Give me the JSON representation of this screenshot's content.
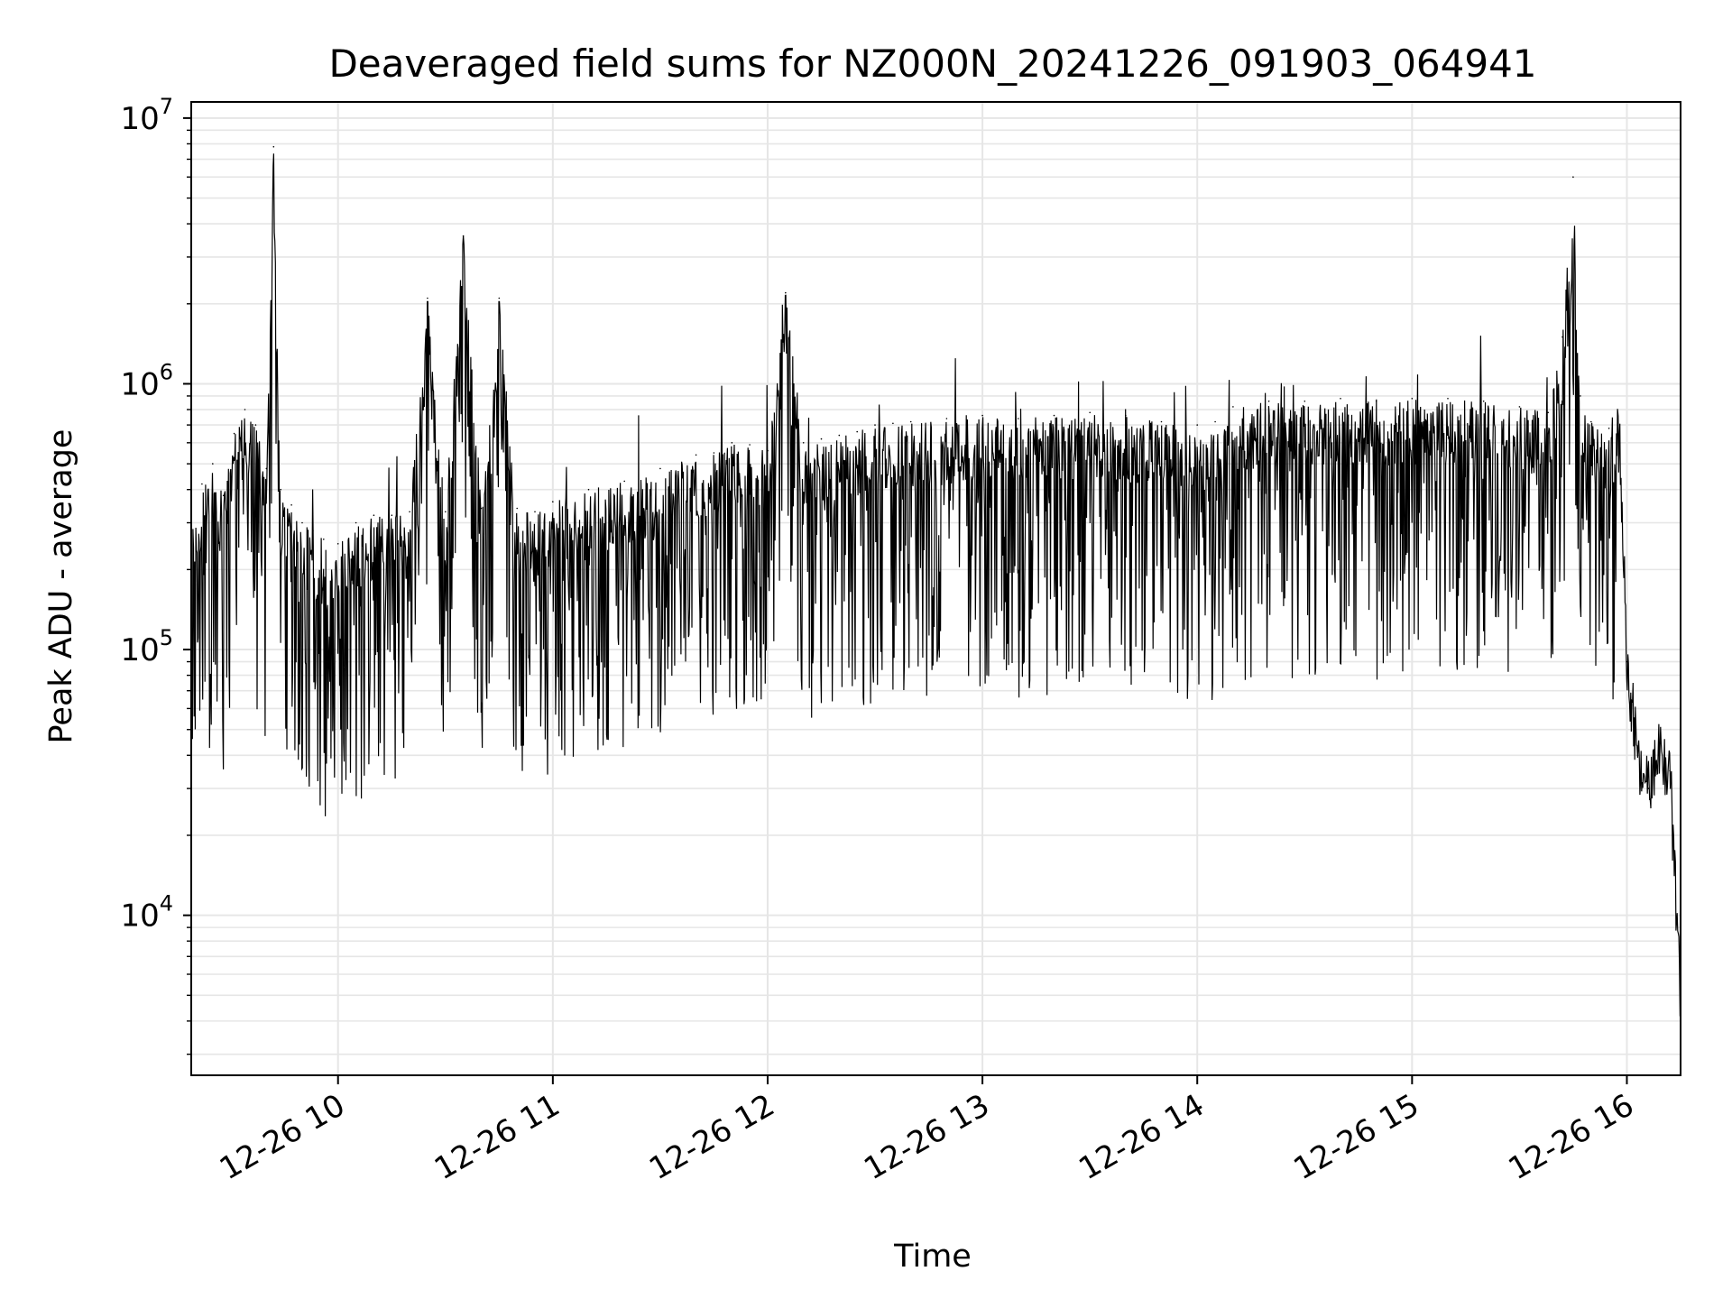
{
  "chart_data": {
    "type": "line",
    "title": "Deaveraged field sums for NZ000N_20241226_091903_064941",
    "xlabel": "Time",
    "ylabel": "Peak ADU - average",
    "x_scale": "time",
    "y_scale": "log",
    "xlim": [
      "12-26 09:19",
      "12-26 16:15"
    ],
    "ylim": [
      2500,
      11500000
    ],
    "x_ticks": [
      "12-26 10",
      "12-26 11",
      "12-26 12",
      "12-26 13",
      "12-26 14",
      "12-26 15",
      "12-26 16"
    ],
    "y_ticks": [
      {
        "base": "10",
        "exp": "4"
      },
      {
        "base": "10",
        "exp": "5"
      },
      {
        "base": "10",
        "exp": "6"
      },
      {
        "base": "10",
        "exp": "7"
      }
    ],
    "grid": true,
    "line_color": "#000000",
    "grid_color": "#e6e6e6",
    "series": [
      {
        "x": [
          "12-26 09:19",
          "12-26 09:22",
          "12-26 09:25",
          "12-26 09:28",
          "12-26 09:31",
          "12-26 09:34",
          "12-26 09:37",
          "12-26 09:40",
          "12-26 09:42",
          "12-26 09:44",
          "12-26 09:47",
          "12-26 09:50",
          "12-26 09:53",
          "12-26 09:56",
          "12-26 10:00",
          "12-26 10:05",
          "12-26 10:10",
          "12-26 10:15",
          "12-26 10:20",
          "12-26 10:25",
          "12-26 10:30",
          "12-26 10:35",
          "12-26 10:40",
          "12-26 10:45",
          "12-26 10:50",
          "12-26 10:55",
          "12-26 11:00",
          "12-26 11:10",
          "12-26 11:20",
          "12-26 11:30",
          "12-26 11:40",
          "12-26 11:45",
          "12-26 11:50",
          "12-26 11:55",
          "12-26 12:00",
          "12-26 12:05",
          "12-26 12:10",
          "12-26 12:15",
          "12-26 12:20",
          "12-26 12:25",
          "12-26 12:30",
          "12-26 12:35",
          "12-26 12:40",
          "12-26 12:50",
          "12-26 13:00",
          "12-26 13:10",
          "12-26 13:20",
          "12-26 13:30",
          "12-26 13:40",
          "12-26 13:50",
          "12-26 14:00",
          "12-26 14:05",
          "12-26 14:10",
          "12-26 14:20",
          "12-26 14:30",
          "12-26 14:40",
          "12-26 14:50",
          "12-26 15:00",
          "12-26 15:10",
          "12-26 15:20",
          "12-26 15:30",
          "12-26 15:38",
          "12-26 15:42",
          "12-26 15:45",
          "12-26 15:47",
          "12-26 15:50",
          "12-26 15:55",
          "12-26 15:58",
          "12-26 16:00",
          "12-26 16:03",
          "12-26 16:06",
          "12-26 16:09",
          "12-26 16:12",
          "12-26 16:15"
        ],
        "y": [
          300000,
          420000,
          500000,
          380000,
          650000,
          800000,
          700000,
          480000,
          7800000,
          400000,
          350000,
          300000,
          280000,
          260000,
          250000,
          300000,
          320000,
          320000,
          330000,
          2100000,
          330000,
          3600000,
          340000,
          2100000,
          340000,
          330000,
          360000,
          400000,
          430000,
          480000,
          540000,
          550000,
          600000,
          590000,
          560000,
          2200000,
          600000,
          620000,
          640000,
          660000,
          700000,
          710000,
          720000,
          740000,
          760000,
          740000,
          760000,
          780000,
          760000,
          720000,
          700000,
          720000,
          820000,
          860000,
          860000,
          880000,
          860000,
          880000,
          880000,
          860000,
          820000,
          780000,
          1500000,
          6000000,
          900000,
          720000,
          680000,
          600000,
          90000,
          40000,
          30000,
          40000,
          35000,
          5000
        ]
      }
    ]
  }
}
